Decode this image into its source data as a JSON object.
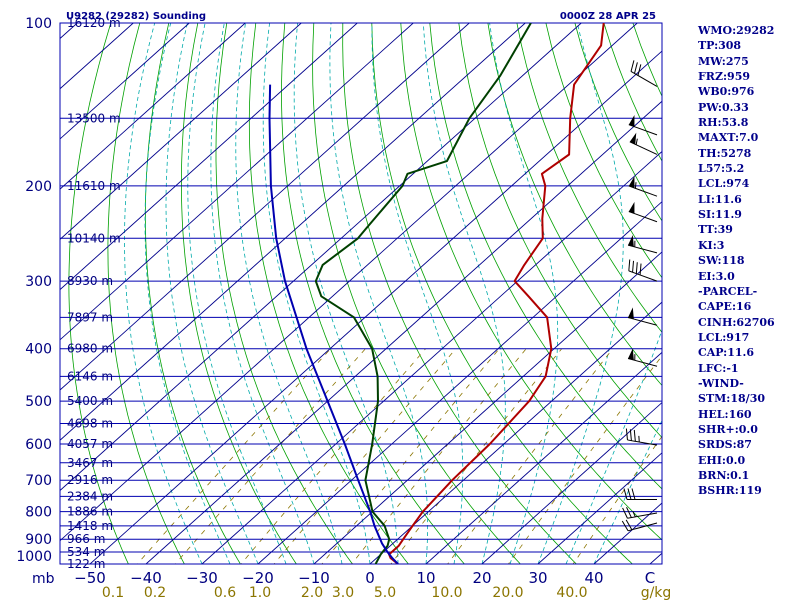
{
  "header": {
    "station": "U9282 (29282) Sounding",
    "time": "0000Z 28 APR 25"
  },
  "indices": [
    "WMO:29282",
    "TP:308",
    "MW:275",
    "FRZ:959",
    "WB0:976",
    "PW:0.33",
    "RH:53.8",
    "MAXT:7.0",
    "TH:5278",
    "L57:5.2",
    "LCL:974",
    "LI:11.6",
    "SI:11.9",
    "TT:39",
    "KI:3",
    "SW:118",
    "EI:3.0",
    "-PARCEL-",
    "CAPE:16",
    "CINH:62706",
    "LCL:917",
    "CAP:11.6",
    "LFC:-1",
    "-WIND-",
    "STM:18/30",
    "HEL:160",
    "SHR+:0.0",
    "SRDS:87",
    "EHI:0.0",
    "BRN:0.1",
    "BSHR:119"
  ],
  "colors": {
    "temperature": "#b00000",
    "dewpoint": "#004000",
    "parcel": "#0000b0",
    "isobar": "#0000b0",
    "isotherm": "#00008b",
    "dry_adiabat": "#00a000",
    "moist_adiabat": "#00aaaa",
    "mixing_ratio": "#8b7500",
    "text": "#000080"
  },
  "chart_data": {
    "type": "skew-t",
    "title": "U9282 (29282) Sounding",
    "xlabel": "",
    "ylabel": "mb",
    "y_scale": "log",
    "ylim": [
      1000,
      100
    ],
    "xlim": [
      -50,
      50
    ],
    "pressure_ticks": [
      {
        "p": 100,
        "label": "100"
      },
      {
        "p": 200,
        "label": "200"
      },
      {
        "p": 300,
        "label": "300"
      },
      {
        "p": 400,
        "label": "400"
      },
      {
        "p": 500,
        "label": "500"
      },
      {
        "p": 600,
        "label": "600"
      },
      {
        "p": 700,
        "label": "700"
      },
      {
        "p": 800,
        "label": "800"
      },
      {
        "p": 900,
        "label": "900"
      },
      {
        "p": 1000,
        "label": "1000"
      }
    ],
    "height_labels": [
      {
        "p": 100,
        "label": "16120 m"
      },
      {
        "p": 150,
        "label": "13500 m"
      },
      {
        "p": 200,
        "label": "11610 m"
      },
      {
        "p": 250,
        "label": "10140 m"
      },
      {
        "p": 300,
        "label": "8930 m"
      },
      {
        "p": 350,
        "label": "7897 m"
      },
      {
        "p": 400,
        "label": "6980 m"
      },
      {
        "p": 450,
        "label": "6146 m"
      },
      {
        "p": 500,
        "label": "5400 m"
      },
      {
        "p": 550,
        "label": "4698 m"
      },
      {
        "p": 600,
        "label": "4057 m"
      },
      {
        "p": 650,
        "label": "3467 m"
      },
      {
        "p": 700,
        "label": "2916 m"
      },
      {
        "p": 750,
        "label": "2384 m"
      },
      {
        "p": 800,
        "label": "1886 m"
      },
      {
        "p": 850,
        "label": "1418 m"
      },
      {
        "p": 900,
        "label": "966 m"
      },
      {
        "p": 950,
        "label": "534 m"
      },
      {
        "p": 1000,
        "label": "122 m"
      }
    ],
    "temperature_ticks": [
      -50,
      -40,
      -30,
      -20,
      -10,
      0,
      10,
      20,
      30,
      40,
      50
    ],
    "temperature_tick_labels": [
      "−50",
      "−40",
      "−30",
      "−20",
      "−10",
      "0",
      "10",
      "20",
      "30",
      "40",
      "C"
    ],
    "mixing_ratio_labels": [
      "0.1",
      "0.2",
      "0.6",
      "1.0",
      "2.0",
      "3.0",
      "5.0",
      "10.0",
      "20.0",
      "40.0",
      "g/kg"
    ],
    "mixing_ratio_values": [
      0.1,
      0.2,
      0.6,
      1.0,
      2.0,
      3.0,
      5.0,
      10.0,
      20.0,
      40.0
    ],
    "series": [
      {
        "key": "temperature",
        "points": [
          [
            1000,
            5.0
          ],
          [
            975,
            2.5
          ],
          [
            960,
            1.5
          ],
          [
            925,
            1.5
          ],
          [
            900,
            1.0
          ],
          [
            850,
            0.0
          ],
          [
            800,
            -1.0
          ],
          [
            700,
            -2.0
          ],
          [
            600,
            -2.5
          ],
          [
            500,
            -4.0
          ],
          [
            450,
            -6.0
          ],
          [
            400,
            -10.5
          ],
          [
            350,
            -17.5
          ],
          [
            320,
            -25.0
          ],
          [
            300,
            -30.5
          ],
          [
            280,
            -32.0
          ],
          [
            250,
            -34.0
          ],
          [
            230,
            -38.0
          ],
          [
            200,
            -44.0
          ],
          [
            190,
            -47.0
          ],
          [
            175,
            -46.0
          ],
          [
            150,
            -53.0
          ],
          [
            130,
            -59.0
          ],
          [
            110,
            -62.0
          ],
          [
            100,
            -66.0
          ]
        ]
      },
      {
        "key": "dewpoint",
        "points": [
          [
            1000,
            1.0
          ],
          [
            960,
            0.0
          ],
          [
            925,
            -0.5
          ],
          [
            900,
            -1.5
          ],
          [
            850,
            -5.0
          ],
          [
            800,
            -10.0
          ],
          [
            700,
            -17.5
          ],
          [
            600,
            -23.5
          ],
          [
            500,
            -31.0
          ],
          [
            450,
            -36.0
          ],
          [
            400,
            -42.5
          ],
          [
            350,
            -52.0
          ],
          [
            320,
            -62.0
          ],
          [
            300,
            -66.0
          ],
          [
            280,
            -68.0
          ],
          [
            250,
            -67.0
          ],
          [
            240,
            -67.5
          ],
          [
            200,
            -69.5
          ],
          [
            190,
            -71.0
          ],
          [
            180,
            -66.5
          ],
          [
            150,
            -71.0
          ],
          [
            125,
            -74.0
          ],
          [
            100,
            -79.0
          ]
        ]
      },
      {
        "key": "parcel",
        "points": [
          [
            1000,
            5.0
          ],
          [
            975,
            2.8
          ],
          [
            950,
            0.7
          ],
          [
            917,
            -1.9
          ],
          [
            900,
            -3.1
          ],
          [
            850,
            -6.8
          ],
          [
            800,
            -10.4
          ],
          [
            700,
            -18.8
          ],
          [
            600,
            -28.4
          ],
          [
            500,
            -40.0
          ],
          [
            400,
            -54.2
          ],
          [
            300,
            -71.5
          ],
          [
            250,
            -81.6
          ],
          [
            200,
            -93.0
          ],
          [
            150,
            -106.7
          ],
          [
            130,
            -113.3
          ]
        ]
      }
    ],
    "wind_barbs": [
      {
        "p": 131,
        "dir": 300,
        "spd": 30
      },
      {
        "p": 161,
        "dir": 290,
        "spd": 50
      },
      {
        "p": 175,
        "dir": 295,
        "spd": 55
      },
      {
        "p": 209,
        "dir": 290,
        "spd": 55
      },
      {
        "p": 233,
        "dir": 290,
        "spd": 50
      },
      {
        "p": 266,
        "dir": 285,
        "spd": 55
      },
      {
        "p": 300,
        "dir": 290,
        "spd": 40
      },
      {
        "p": 362,
        "dir": 285,
        "spd": 50
      },
      {
        "p": 431,
        "dir": 285,
        "spd": 55
      },
      {
        "p": 603,
        "dir": 280,
        "spd": 35
      },
      {
        "p": 760,
        "dir": 270,
        "spd": 30
      },
      {
        "p": 805,
        "dir": 260,
        "spd": 25
      },
      {
        "p": 840,
        "dir": 255,
        "spd": 20
      }
    ]
  }
}
